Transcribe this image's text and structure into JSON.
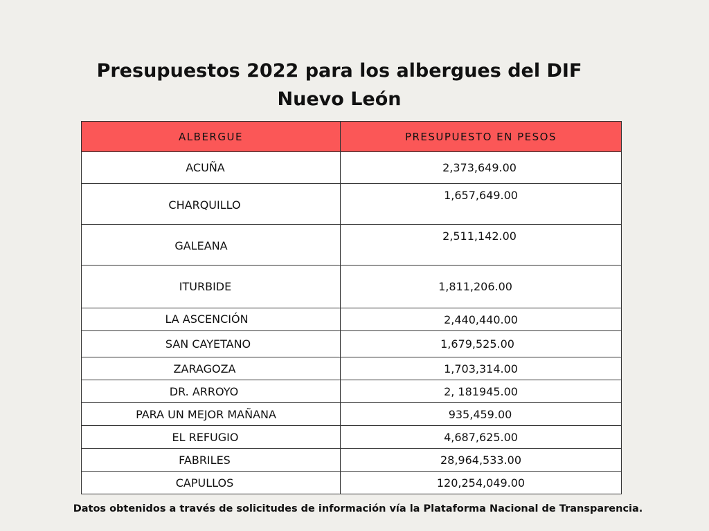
{
  "title": "Presupuestos 2022 para los albergues del DIF Nuevo León",
  "table": {
    "headers": [
      "ALBERGUE",
      "PRESUPUESTO EN PESOS"
    ],
    "rows": [
      {
        "name": "ACUÑA",
        "value": "2,373,649.00"
      },
      {
        "name": "CHARQUILLO",
        "value": "1,657,649.00"
      },
      {
        "name": "GALEANA",
        "value": "2,511,142.00"
      },
      {
        "name": "ITURBIDE",
        "value": "1,811,206.00"
      },
      {
        "name": "LA ASCENCIÓN",
        "value": "2,440,440.00"
      },
      {
        "name": "SAN CAYETANO",
        "value": "1,679,525.00"
      },
      {
        "name": "ZARAGOZA",
        "value": "1,703,314.00"
      },
      {
        "name": "DR. ARROYO",
        "value": "2, 181945.00"
      },
      {
        "name": "PARA UN MEJOR MAÑANA",
        "value": "935,459.00"
      },
      {
        "name": "EL REFUGIO",
        "value": "4,687,625.00"
      },
      {
        "name": "FABRILES",
        "value": "28,964,533.00"
      },
      {
        "name": "CAPULLOS",
        "value": "120,254,049.00"
      }
    ]
  },
  "footer": "Datos obtenidos a través de solicitudes de información vía la Plataforma Nacional de Transparencia.",
  "colors": {
    "background": "#f0efeb",
    "header_fill": "#fb5757",
    "border": "#333333"
  }
}
